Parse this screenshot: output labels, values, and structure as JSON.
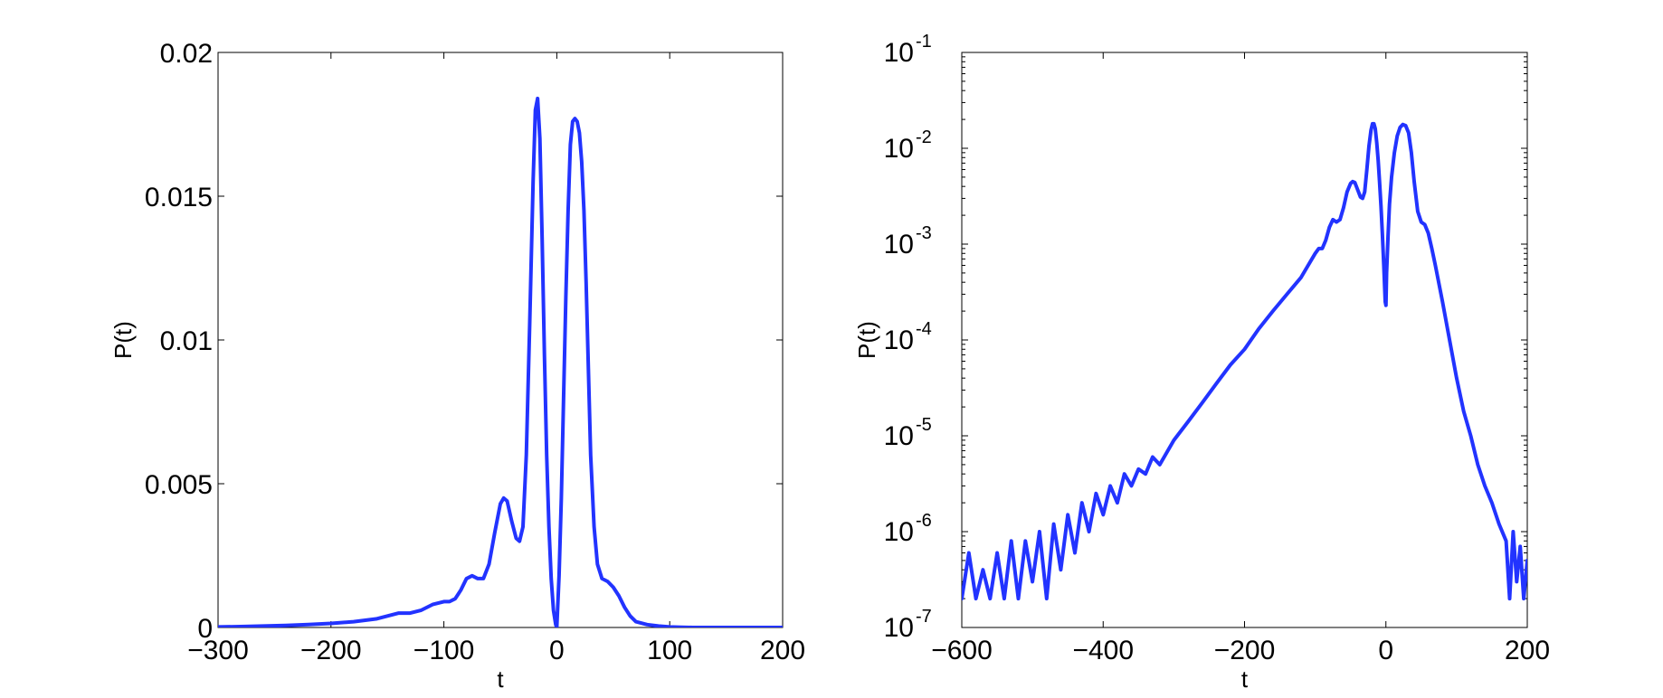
{
  "chart_data": [
    {
      "type": "line",
      "xlabel": "t",
      "ylabel": "P(t)",
      "xlim": [
        -300,
        200
      ],
      "ylim": [
        0,
        0.02
      ],
      "yscale": "linear",
      "grid": false,
      "xticks": [
        -300,
        -200,
        -100,
        0,
        100,
        200
      ],
      "xtick_labels": [
        "−300",
        "−200",
        "−100",
        "0",
        "100",
        "200"
      ],
      "yticks": [
        0,
        0.005,
        0.01,
        0.015,
        0.02
      ],
      "ytick_labels": [
        "0",
        "0.005",
        "0.01",
        "0.015",
        "0.02"
      ],
      "line_color": "#2233ff",
      "series": [
        {
          "x": [
            -300,
            -280,
            -260,
            -240,
            -220,
            -200,
            -180,
            -160,
            -150,
            -140,
            -130,
            -120,
            -110,
            -100,
            -95,
            -90,
            -85,
            -80,
            -75,
            -70,
            -65,
            -60,
            -55,
            -50,
            -47,
            -44,
            -40,
            -36,
            -33,
            -30,
            -27,
            -24,
            -21,
            -19,
            -17,
            -15,
            -13,
            -11,
            -9,
            -7,
            -5,
            -3,
            -1,
            0,
            2,
            4,
            6,
            8,
            10,
            12,
            14,
            16,
            18,
            20,
            22,
            24,
            26,
            28,
            30,
            33,
            36,
            40,
            45,
            50,
            55,
            60,
            65,
            70,
            75,
            80,
            90,
            100,
            110,
            120,
            140,
            160,
            180,
            200
          ],
          "y": [
            2e-05,
            3e-05,
            5e-05,
            7e-05,
            0.0001,
            0.00014,
            0.0002,
            0.0003,
            0.0004,
            0.0005,
            0.0005,
            0.0006,
            0.0008,
            0.0009,
            0.0009,
            0.001,
            0.0013,
            0.0017,
            0.0018,
            0.0017,
            0.0017,
            0.0022,
            0.0033,
            0.0043,
            0.0045,
            0.0044,
            0.0037,
            0.0031,
            0.003,
            0.0035,
            0.006,
            0.0105,
            0.0155,
            0.018,
            0.0184,
            0.017,
            0.0135,
            0.0095,
            0.006,
            0.0035,
            0.0017,
            0.0006,
            0.0001,
            0.0,
            0.0018,
            0.0045,
            0.008,
            0.0115,
            0.0145,
            0.0168,
            0.0176,
            0.0177,
            0.0176,
            0.0172,
            0.0162,
            0.0145,
            0.012,
            0.009,
            0.006,
            0.0035,
            0.0022,
            0.0017,
            0.0016,
            0.0014,
            0.0011,
            0.0007,
            0.0004,
            0.0002,
            0.00015,
            0.0001,
            5e-05,
            2e-05,
            1e-05,
            0.0,
            0.0,
            0.0,
            0.0,
            0.0
          ]
        }
      ]
    },
    {
      "type": "line",
      "xlabel": "t",
      "ylabel": "P(t)",
      "xlim": [
        -600,
        200
      ],
      "ylim": [
        1e-07,
        0.1
      ],
      "yscale": "log",
      "grid": false,
      "xticks": [
        -600,
        -400,
        -200,
        0,
        200
      ],
      "xtick_labels": [
        "−600",
        "−400",
        "−200",
        "0",
        "200"
      ],
      "ytick_exponents": [
        -7,
        -6,
        -5,
        -4,
        -3,
        -2,
        -1
      ],
      "ytick_base": "10",
      "line_color": "#2233ff",
      "series": [
        {
          "x": [
            -600,
            -590,
            -580,
            -570,
            -560,
            -550,
            -540,
            -530,
            -520,
            -510,
            -500,
            -490,
            -480,
            -470,
            -460,
            -450,
            -440,
            -430,
            -420,
            -410,
            -400,
            -390,
            -380,
            -370,
            -360,
            -350,
            -340,
            -330,
            -320,
            -300,
            -280,
            -260,
            -240,
            -220,
            -200,
            -180,
            -160,
            -140,
            -120,
            -110,
            -100,
            -95,
            -90,
            -85,
            -80,
            -75,
            -70,
            -65,
            -60,
            -55,
            -50,
            -47,
            -44,
            -40,
            -36,
            -33,
            -30,
            -27,
            -24,
            -21,
            -19,
            -17,
            -15,
            -13,
            -11,
            -9,
            -7,
            -5,
            -3,
            -1,
            0,
            1,
            3,
            5,
            8,
            12,
            16,
            20,
            24,
            28,
            32,
            36,
            40,
            45,
            50,
            55,
            60,
            65,
            70,
            80,
            90,
            100,
            110,
            120,
            130,
            140,
            150,
            160,
            170,
            175,
            180,
            185,
            190,
            195,
            200
          ],
          "y": [
            2e-07,
            6e-07,
            2e-07,
            4e-07,
            2e-07,
            6e-07,
            2e-07,
            8e-07,
            2e-07,
            8e-07,
            3e-07,
            1e-06,
            2e-07,
            1.2e-06,
            4e-07,
            1.5e-06,
            6e-07,
            2e-06,
            1e-06,
            2.5e-06,
            1.5e-06,
            3e-06,
            2e-06,
            4e-06,
            3e-06,
            4.5e-06,
            4e-06,
            6e-06,
            5e-06,
            9e-06,
            1.4e-05,
            2.2e-05,
            3.5e-05,
            5.5e-05,
            8e-05,
            0.00013,
            0.0002,
            0.0003,
            0.00045,
            0.0006,
            0.0008,
            0.0009,
            0.0009,
            0.0011,
            0.0015,
            0.0018,
            0.0017,
            0.0018,
            0.0024,
            0.0035,
            0.0043,
            0.0045,
            0.0044,
            0.0037,
            0.0031,
            0.003,
            0.0035,
            0.006,
            0.0105,
            0.0155,
            0.018,
            0.018,
            0.016,
            0.0115,
            0.0075,
            0.0045,
            0.0025,
            0.0013,
            0.0006,
            0.00025,
            0.00023,
            0.0005,
            0.0012,
            0.0026,
            0.005,
            0.009,
            0.0135,
            0.0165,
            0.0177,
            0.0172,
            0.0145,
            0.009,
            0.0045,
            0.0022,
            0.0017,
            0.0016,
            0.0013,
            0.0009,
            0.0006,
            0.00025,
            0.0001,
            4e-05,
            1.8e-05,
            1e-05,
            5e-06,
            3e-06,
            2e-06,
            1.2e-06,
            8e-07,
            2e-07,
            1e-06,
            3e-07,
            7e-07,
            2e-07,
            5e-07
          ]
        }
      ]
    }
  ]
}
